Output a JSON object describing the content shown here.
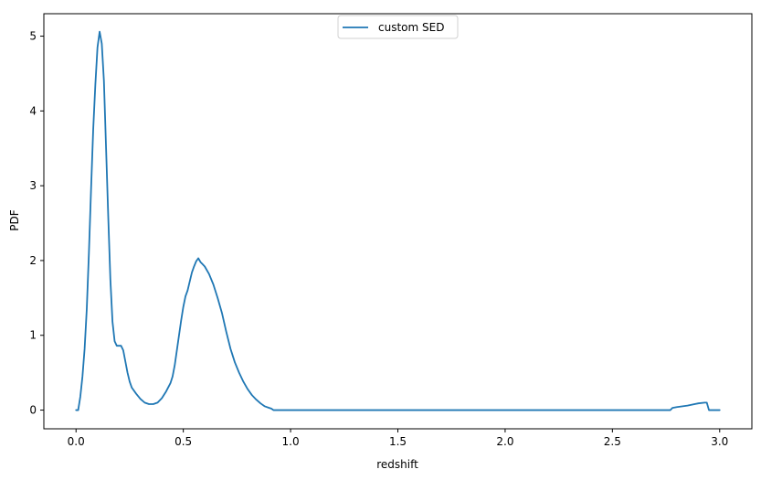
{
  "chart_data": {
    "type": "line",
    "title": "",
    "xlabel": "redshift",
    "ylabel": "PDF",
    "xlim": [
      -0.15,
      3.15
    ],
    "ylim": [
      -0.25,
      5.3
    ],
    "xticks": [
      0.0,
      0.5,
      1.0,
      1.5,
      2.0,
      2.5,
      3.0
    ],
    "xtick_labels": [
      "0.0",
      "0.5",
      "1.0",
      "1.5",
      "2.0",
      "2.5",
      "3.0"
    ],
    "yticks": [
      0,
      1,
      2,
      3,
      4,
      5
    ],
    "ytick_labels": [
      "0",
      "1",
      "2",
      "3",
      "4",
      "5"
    ],
    "grid": false,
    "legend": {
      "placement": "upper center"
    },
    "series": [
      {
        "name": "custom SED",
        "color": "#1f77b4",
        "points": [
          [
            0.0,
            0.0
          ],
          [
            0.01,
            0.0
          ],
          [
            0.02,
            0.18
          ],
          [
            0.03,
            0.45
          ],
          [
            0.04,
            0.82
          ],
          [
            0.05,
            1.35
          ],
          [
            0.06,
            2.1
          ],
          [
            0.07,
            2.95
          ],
          [
            0.08,
            3.75
          ],
          [
            0.09,
            4.35
          ],
          [
            0.1,
            4.85
          ],
          [
            0.11,
            5.06
          ],
          [
            0.12,
            4.9
          ],
          [
            0.13,
            4.4
          ],
          [
            0.14,
            3.5
          ],
          [
            0.15,
            2.6
          ],
          [
            0.16,
            1.75
          ],
          [
            0.17,
            1.18
          ],
          [
            0.18,
            0.92
          ],
          [
            0.19,
            0.86
          ],
          [
            0.2,
            0.86
          ],
          [
            0.21,
            0.86
          ],
          [
            0.22,
            0.8
          ],
          [
            0.23,
            0.65
          ],
          [
            0.24,
            0.5
          ],
          [
            0.25,
            0.38
          ],
          [
            0.26,
            0.3
          ],
          [
            0.28,
            0.22
          ],
          [
            0.3,
            0.15
          ],
          [
            0.32,
            0.1
          ],
          [
            0.34,
            0.08
          ],
          [
            0.36,
            0.08
          ],
          [
            0.38,
            0.1
          ],
          [
            0.4,
            0.16
          ],
          [
            0.42,
            0.25
          ],
          [
            0.44,
            0.36
          ],
          [
            0.45,
            0.45
          ],
          [
            0.46,
            0.6
          ],
          [
            0.47,
            0.8
          ],
          [
            0.48,
            1.0
          ],
          [
            0.49,
            1.2
          ],
          [
            0.5,
            1.38
          ],
          [
            0.51,
            1.52
          ],
          [
            0.52,
            1.6
          ],
          [
            0.53,
            1.72
          ],
          [
            0.54,
            1.84
          ],
          [
            0.55,
            1.92
          ],
          [
            0.56,
            1.99
          ],
          [
            0.57,
            2.03
          ],
          [
            0.58,
            1.98
          ],
          [
            0.59,
            1.95
          ],
          [
            0.6,
            1.92
          ],
          [
            0.62,
            1.82
          ],
          [
            0.64,
            1.68
          ],
          [
            0.66,
            1.5
          ],
          [
            0.68,
            1.3
          ],
          [
            0.7,
            1.05
          ],
          [
            0.72,
            0.82
          ],
          [
            0.74,
            0.64
          ],
          [
            0.76,
            0.5
          ],
          [
            0.78,
            0.38
          ],
          [
            0.8,
            0.28
          ],
          [
            0.82,
            0.2
          ],
          [
            0.84,
            0.14
          ],
          [
            0.86,
            0.09
          ],
          [
            0.88,
            0.05
          ],
          [
            0.9,
            0.03
          ],
          [
            0.91,
            0.02
          ],
          [
            0.92,
            0.0
          ],
          [
            1.0,
            0.0
          ],
          [
            1.5,
            0.0
          ],
          [
            2.0,
            0.0
          ],
          [
            2.5,
            0.0
          ],
          [
            2.77,
            0.0
          ],
          [
            2.78,
            0.03
          ],
          [
            2.8,
            0.04
          ],
          [
            2.85,
            0.06
          ],
          [
            2.9,
            0.09
          ],
          [
            2.93,
            0.1
          ],
          [
            2.94,
            0.1
          ],
          [
            2.95,
            0.0
          ],
          [
            3.0,
            0.0
          ]
        ]
      }
    ]
  }
}
